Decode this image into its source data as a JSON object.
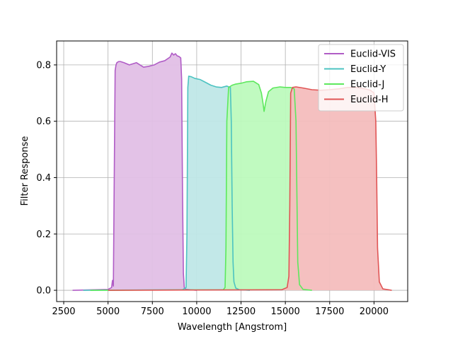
{
  "chart_data": {
    "type": "area",
    "title": "",
    "xlabel": "Wavelength [Angstrom]",
    "ylabel": "Filter Response",
    "xlim": [
      2100,
      21900
    ],
    "ylim": [
      -0.04,
      0.885
    ],
    "xticks": [
      2500,
      5000,
      7500,
      10000,
      12500,
      15000,
      17500,
      20000
    ],
    "yticks": [
      0.0,
      0.2,
      0.4,
      0.6,
      0.8
    ],
    "xtick_labels": [
      "2500",
      "5000",
      "7500",
      "10000",
      "12500",
      "15000",
      "17500",
      "20000"
    ],
    "ytick_labels": [
      "0.0",
      "0.2",
      "0.4",
      "0.6",
      "0.8"
    ],
    "grid": true,
    "legend_position": "top-right",
    "series": [
      {
        "name": "Euclid-VIS",
        "color": "#b05cc6",
        "fill": "#e1bfe6",
        "x": [
          3000,
          5000,
          5200,
          5250,
          5300,
          5350,
          5400,
          5450,
          5500,
          5600,
          5700,
          5900,
          6200,
          6600,
          7000,
          7300,
          7600,
          7900,
          8200,
          8500,
          8600,
          8700,
          8800,
          8900,
          9000,
          9100,
          9150,
          9200,
          9250,
          9300,
          9400,
          10000
        ],
        "y": [
          0.0,
          0.003,
          0.01,
          0.035,
          0.015,
          0.4,
          0.78,
          0.8,
          0.808,
          0.812,
          0.812,
          0.808,
          0.8,
          0.808,
          0.792,
          0.795,
          0.8,
          0.81,
          0.815,
          0.828,
          0.842,
          0.835,
          0.84,
          0.832,
          0.83,
          0.825,
          0.75,
          0.35,
          0.06,
          0.01,
          0.003,
          0.0
        ]
      },
      {
        "name": "Euclid-Y",
        "color": "#4cc3c1",
        "fill": "#bfe7e7",
        "x": [
          3600,
          9200,
          9400,
          9450,
          9500,
          9550,
          9700,
          9900,
          10200,
          10500,
          10800,
          11100,
          11400,
          11700,
          11900,
          11950,
          12000,
          12050,
          12100,
          12200,
          12400,
          13000
        ],
        "y": [
          0.0,
          0.002,
          0.01,
          0.2,
          0.72,
          0.76,
          0.758,
          0.752,
          0.748,
          0.738,
          0.728,
          0.722,
          0.72,
          0.725,
          0.72,
          0.6,
          0.3,
          0.1,
          0.03,
          0.008,
          0.002,
          0.0
        ]
      },
      {
        "name": "Euclid-J",
        "color": "#5de85d",
        "fill": "#bdfabd",
        "x": [
          4000,
          11500,
          11600,
          11650,
          11700,
          11800,
          12000,
          12200,
          12500,
          12800,
          13200,
          13500,
          13650,
          13750,
          13800,
          13900,
          14050,
          14300,
          14700,
          15000,
          15300,
          15500,
          15600,
          15650,
          15700,
          15800,
          16000,
          16500
        ],
        "y": [
          0.0,
          0.002,
          0.01,
          0.15,
          0.6,
          0.72,
          0.728,
          0.732,
          0.735,
          0.74,
          0.742,
          0.73,
          0.7,
          0.66,
          0.635,
          0.67,
          0.705,
          0.718,
          0.722,
          0.72,
          0.72,
          0.715,
          0.6,
          0.35,
          0.1,
          0.02,
          0.003,
          0.0
        ]
      },
      {
        "name": "Euclid-H",
        "color": "#e05555",
        "fill": "#f4bdbd",
        "x": [
          5000,
          14800,
          15100,
          15200,
          15250,
          15300,
          15400,
          15600,
          16000,
          16500,
          17000,
          17500,
          18000,
          18500,
          19000,
          19500,
          19800,
          20000,
          20100,
          20150,
          20200,
          20300,
          20500,
          21000
        ],
        "y": [
          0.0,
          0.002,
          0.01,
          0.05,
          0.3,
          0.7,
          0.72,
          0.722,
          0.718,
          0.712,
          0.71,
          0.712,
          0.715,
          0.72,
          0.72,
          0.715,
          0.71,
          0.7,
          0.6,
          0.4,
          0.15,
          0.03,
          0.005,
          0.0
        ]
      }
    ]
  }
}
